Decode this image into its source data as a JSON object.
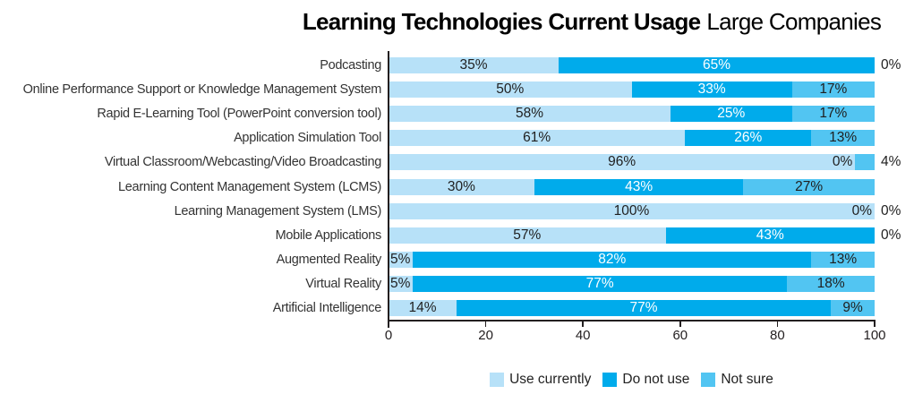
{
  "title": {
    "main": "Learning Technologies Current Usage",
    "suffix": "Large Companies"
  },
  "legend": {
    "items": [
      {
        "label": "Use currently",
        "color": "#B7E1F8"
      },
      {
        "label": "Do not use",
        "color": "#00ABEB"
      },
      {
        "label": "Not sure",
        "color": "#52C5F2"
      }
    ]
  },
  "colors": {
    "axis": "#231F20",
    "value_label_dark": "#1F1F1F",
    "value_label_light": "#FFFFFF",
    "category_text": "#333333"
  },
  "chart_data": {
    "type": "bar",
    "orientation": "horizontal",
    "stacked": true,
    "title": "Learning Technologies Current Usage",
    "subtitle": "Large Companies",
    "categories": [
      "Podcasting",
      "Online Performance Support or Knowledge Management System",
      "Rapid E-Learning Tool (PowerPoint conversion tool)",
      "Application Simulation Tool",
      "Virtual Classroom/Webcasting/Video Broadcasting",
      "Learning Content Management System (LCMS)",
      "Learning Management System (LMS)",
      "Mobile Applications",
      "Augmented Reality",
      "Virtual Reality",
      "Artificial Intelligence"
    ],
    "series": [
      {
        "name": "Use currently",
        "color": "#B7E1F8",
        "values": [
          35,
          50,
          58,
          61,
          96,
          30,
          100,
          57,
          5,
          5,
          14
        ]
      },
      {
        "name": "Do not use",
        "color": "#00ABEB",
        "values": [
          65,
          33,
          25,
          26,
          0,
          43,
          0,
          43,
          82,
          77,
          77
        ]
      },
      {
        "name": "Not sure",
        "color": "#52C5F2",
        "values": [
          0,
          17,
          17,
          13,
          4,
          27,
          0,
          0,
          13,
          18,
          9
        ]
      }
    ],
    "value_suffix": "%",
    "xlim": [
      0,
      100
    ],
    "x_ticks": [
      0,
      20,
      40,
      60,
      80,
      100
    ],
    "grid": false,
    "legend_position": "bottom"
  }
}
